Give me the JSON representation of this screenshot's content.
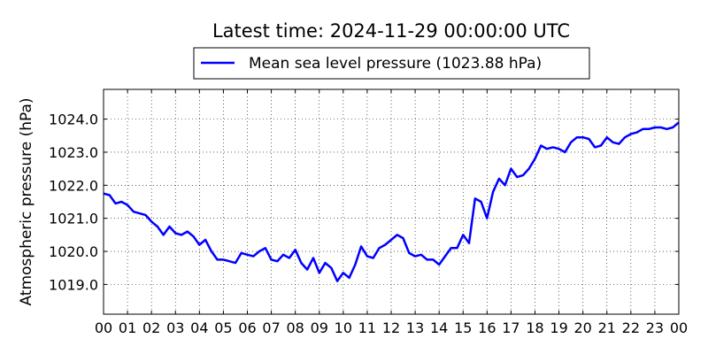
{
  "chart_data": {
    "type": "line",
    "title": "Latest time: 2024-11-29 00:00:00 UTC",
    "xlabel": "",
    "ylabel": "Atmospheric pressure (hPa)",
    "xlim": [
      0,
      24
    ],
    "ylim": [
      1018.1,
      1024.9
    ],
    "x_ticks": [
      0,
      1,
      2,
      3,
      4,
      5,
      6,
      7,
      8,
      9,
      10,
      11,
      12,
      13,
      14,
      15,
      16,
      17,
      18,
      19,
      20,
      21,
      22,
      23,
      24
    ],
    "x_tick_labels": [
      "00",
      "01",
      "02",
      "03",
      "04",
      "05",
      "06",
      "07",
      "08",
      "09",
      "10",
      "11",
      "12",
      "13",
      "14",
      "15",
      "16",
      "17",
      "18",
      "19",
      "20",
      "21",
      "22",
      "23",
      "00"
    ],
    "y_ticks": [
      1019.0,
      1020.0,
      1021.0,
      1022.0,
      1023.0,
      1024.0
    ],
    "y_tick_labels": [
      "1019.0",
      "1020.0",
      "1021.0",
      "1022.0",
      "1023.0",
      "1024.0"
    ],
    "grid": true,
    "legend_position": "top-center",
    "series": [
      {
        "name": "Mean sea level pressure (1023.88 hPa)",
        "color": "#0000ff",
        "x": [
          0.0,
          0.25,
          0.5,
          0.75,
          1.0,
          1.25,
          1.5,
          1.75,
          2.0,
          2.25,
          2.5,
          2.75,
          3.0,
          3.25,
          3.5,
          3.75,
          4.0,
          4.25,
          4.5,
          4.75,
          5.0,
          5.25,
          5.5,
          5.75,
          6.0,
          6.25,
          6.5,
          6.75,
          7.0,
          7.25,
          7.5,
          7.75,
          8.0,
          8.25,
          8.5,
          8.75,
          9.0,
          9.25,
          9.5,
          9.75,
          10.0,
          10.25,
          10.5,
          10.75,
          11.0,
          11.25,
          11.5,
          11.75,
          12.0,
          12.25,
          12.5,
          12.75,
          13.0,
          13.25,
          13.5,
          13.75,
          14.0,
          14.25,
          14.5,
          14.75,
          15.0,
          15.25,
          15.5,
          15.75,
          16.0,
          16.25,
          16.5,
          16.75,
          17.0,
          17.25,
          17.5,
          17.75,
          18.0,
          18.25,
          18.5,
          18.75,
          19.0,
          19.25,
          19.5,
          19.75,
          20.0,
          20.25,
          20.5,
          20.75,
          21.0,
          21.25,
          21.5,
          21.75,
          22.0,
          22.25,
          22.5,
          22.75,
          23.0,
          23.25,
          23.5,
          23.75,
          24.0
        ],
        "y": [
          1021.75,
          1021.7,
          1021.45,
          1021.5,
          1021.4,
          1021.2,
          1021.15,
          1021.1,
          1020.9,
          1020.75,
          1020.5,
          1020.75,
          1020.55,
          1020.5,
          1020.6,
          1020.45,
          1020.2,
          1020.35,
          1020.0,
          1019.75,
          1019.75,
          1019.7,
          1019.65,
          1019.95,
          1019.9,
          1019.85,
          1020.0,
          1020.1,
          1019.75,
          1019.7,
          1019.9,
          1019.8,
          1020.05,
          1019.65,
          1019.45,
          1019.8,
          1019.35,
          1019.65,
          1019.5,
          1019.1,
          1019.35,
          1019.2,
          1019.6,
          1020.15,
          1019.85,
          1019.8,
          1020.1,
          1020.2,
          1020.35,
          1020.5,
          1020.4,
          1019.95,
          1019.85,
          1019.9,
          1019.75,
          1019.75,
          1019.6,
          1019.85,
          1020.1,
          1020.1,
          1020.5,
          1020.25,
          1021.6,
          1021.5,
          1021.0,
          1021.8,
          1022.2,
          1022.0,
          1022.5,
          1022.25,
          1022.3,
          1022.5,
          1022.8,
          1023.2,
          1023.1,
          1023.15,
          1023.1,
          1023.0,
          1023.3,
          1023.45,
          1023.45,
          1023.4,
          1023.15,
          1023.2,
          1023.45,
          1023.3,
          1023.25,
          1023.45,
          1023.55,
          1023.6,
          1023.7,
          1023.7,
          1023.75,
          1023.75,
          1023.7,
          1023.75,
          1023.9
        ]
      }
    ]
  }
}
